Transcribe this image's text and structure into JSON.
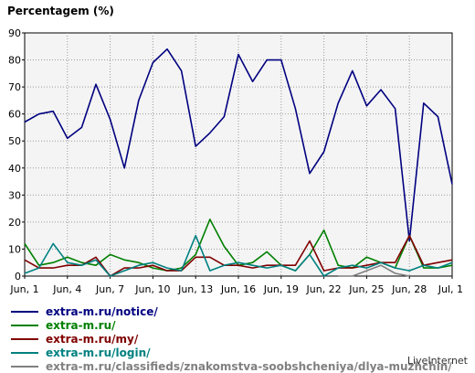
{
  "chart_data": {
    "type": "line",
    "title": "Percentagem (%)",
    "ylim": [
      0,
      90
    ],
    "yticks": [
      0,
      10,
      20,
      30,
      40,
      50,
      60,
      70,
      80,
      90
    ],
    "xlim": [
      0,
      30
    ],
    "xticks": [
      {
        "x": 0,
        "label": "Jun, 1"
      },
      {
        "x": 3,
        "label": "Jun, 4"
      },
      {
        "x": 6,
        "label": "Jun, 7"
      },
      {
        "x": 9,
        "label": "Jun, 10"
      },
      {
        "x": 12,
        "label": "Jun, 13"
      },
      {
        "x": 15,
        "label": "Jun, 16"
      },
      {
        "x": 18,
        "label": "Jun, 19"
      },
      {
        "x": 21,
        "label": "Jun, 22"
      },
      {
        "x": 24,
        "label": "Jun, 25"
      },
      {
        "x": 27,
        "label": "Jun, 28"
      },
      {
        "x": 30,
        "label": "Jul, 1"
      }
    ],
    "grid": true,
    "legend_position": "bottom",
    "series": [
      {
        "name": "extra-m.ru/notice/",
        "color": "#000080",
        "values": [
          57,
          60,
          61,
          51,
          55,
          71,
          58,
          40,
          65,
          79,
          84,
          76,
          48,
          53,
          59,
          82,
          72,
          80,
          80,
          62,
          38,
          46,
          64,
          76,
          63,
          69,
          62,
          13,
          64,
          59,
          34
        ]
      },
      {
        "name": "extra-m.ru/",
        "color": "#008000",
        "values": [
          12,
          4,
          5,
          7,
          5,
          4,
          8,
          6,
          5,
          3,
          2,
          3,
          8,
          21,
          11,
          4,
          5,
          9,
          4,
          2,
          8,
          17,
          4,
          3,
          7,
          5,
          3,
          15,
          3,
          3,
          4
        ]
      },
      {
        "name": "extra-m.ru/my/",
        "color": "#800000",
        "values": [
          6,
          3,
          3,
          4,
          4,
          7,
          0,
          3,
          3,
          4,
          2,
          2,
          7,
          7,
          4,
          4,
          3,
          4,
          4,
          4,
          13,
          2,
          3,
          3,
          4,
          5,
          5,
          15,
          4,
          5,
          6
        ]
      },
      {
        "name": "extra-m.ru/login/",
        "color": "#008080",
        "values": [
          1,
          3,
          12,
          5,
          4,
          6,
          0,
          2,
          4,
          5,
          3,
          2,
          15,
          2,
          4,
          5,
          4,
          3,
          4,
          2,
          8,
          0,
          3,
          4,
          3,
          5,
          3,
          2,
          4,
          3,
          5
        ]
      },
      {
        "name": "extra-m.ru/classifieds/znakomstva-soobshcheniya/dlya-muzhchin/",
        "color": "#808080",
        "values": [
          null,
          null,
          null,
          null,
          null,
          null,
          null,
          null,
          null,
          null,
          null,
          null,
          null,
          null,
          null,
          null,
          null,
          null,
          null,
          null,
          null,
          null,
          0,
          0,
          2,
          4,
          1,
          0,
          null,
          null,
          null
        ]
      }
    ]
  },
  "watermark": "LiveInternet"
}
